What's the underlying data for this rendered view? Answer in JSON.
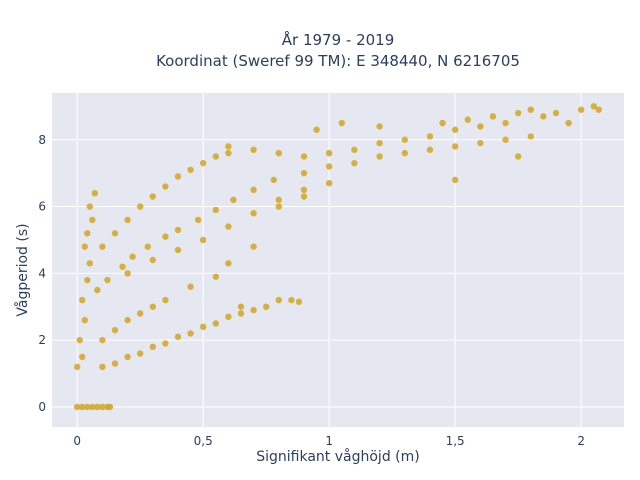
{
  "chart_data": {
    "type": "scatter",
    "title_line1": "År 1979 - 2019",
    "title_line2": "Koordinat (Sweref 99 TM): E 348440, N 6216705",
    "xlabel": "Signifikant våghöjd (m)",
    "ylabel": "Vågperiod (s)",
    "xlim": [
      -0.1,
      2.17
    ],
    "ylim": [
      -0.6,
      9.4
    ],
    "x_ticks": [
      0,
      0.5,
      1,
      1.5,
      2
    ],
    "x_tick_labels": [
      "0",
      "0,5",
      "1",
      "1,5",
      "2"
    ],
    "y_ticks": [
      0,
      2,
      4,
      6,
      8
    ],
    "y_tick_labels": [
      "0",
      "2",
      "4",
      "6",
      "8"
    ],
    "grid": true,
    "legend": "none",
    "colors": {
      "marker": "#d4a520",
      "plot_bg": "#e5e8f0",
      "grid": "#ffffff",
      "text": "#2a3f5f"
    },
    "series": [
      {
        "points": [
          [
            0.0,
            0.0
          ],
          [
            0.02,
            0.0
          ],
          [
            0.04,
            0.0
          ],
          [
            0.06,
            0.0
          ],
          [
            0.08,
            0.0
          ],
          [
            0.1,
            0.0
          ],
          [
            0.12,
            0.0
          ],
          [
            0.13,
            0.0
          ],
          [
            0.0,
            1.2
          ],
          [
            0.02,
            1.5
          ],
          [
            0.01,
            2.0
          ],
          [
            0.03,
            2.6
          ],
          [
            0.02,
            3.2
          ],
          [
            0.04,
            3.8
          ],
          [
            0.05,
            4.3
          ],
          [
            0.03,
            4.8
          ],
          [
            0.04,
            5.2
          ],
          [
            0.06,
            5.6
          ],
          [
            0.05,
            6.0
          ],
          [
            0.07,
            6.4
          ],
          [
            0.1,
            1.2
          ],
          [
            0.15,
            1.3
          ],
          [
            0.2,
            1.5
          ],
          [
            0.25,
            1.6
          ],
          [
            0.3,
            1.8
          ],
          [
            0.35,
            1.9
          ],
          [
            0.4,
            2.1
          ],
          [
            0.45,
            2.2
          ],
          [
            0.5,
            2.4
          ],
          [
            0.55,
            2.5
          ],
          [
            0.6,
            2.7
          ],
          [
            0.65,
            2.8
          ],
          [
            0.7,
            2.9
          ],
          [
            0.75,
            3.0
          ],
          [
            0.8,
            3.2
          ],
          [
            0.1,
            2.0
          ],
          [
            0.15,
            2.3
          ],
          [
            0.2,
            2.6
          ],
          [
            0.25,
            2.8
          ],
          [
            0.3,
            3.0
          ],
          [
            0.35,
            3.2
          ],
          [
            0.08,
            3.5
          ],
          [
            0.12,
            3.8
          ],
          [
            0.18,
            4.2
          ],
          [
            0.22,
            4.5
          ],
          [
            0.28,
            4.8
          ],
          [
            0.35,
            5.1
          ],
          [
            0.4,
            5.3
          ],
          [
            0.48,
            5.6
          ],
          [
            0.55,
            5.9
          ],
          [
            0.62,
            6.2
          ],
          [
            0.7,
            6.5
          ],
          [
            0.78,
            6.8
          ],
          [
            0.1,
            4.8
          ],
          [
            0.15,
            5.2
          ],
          [
            0.2,
            5.6
          ],
          [
            0.25,
            6.0
          ],
          [
            0.3,
            6.3
          ],
          [
            0.35,
            6.6
          ],
          [
            0.4,
            6.9
          ],
          [
            0.45,
            7.1
          ],
          [
            0.5,
            7.3
          ],
          [
            0.55,
            7.5
          ],
          [
            0.6,
            7.6
          ],
          [
            0.2,
            4.0
          ],
          [
            0.3,
            4.4
          ],
          [
            0.4,
            4.7
          ],
          [
            0.5,
            5.0
          ],
          [
            0.6,
            5.4
          ],
          [
            0.7,
            5.8
          ],
          [
            0.8,
            6.2
          ],
          [
            0.9,
            6.5
          ],
          [
            0.6,
            7.8
          ],
          [
            0.7,
            7.7
          ],
          [
            0.8,
            7.6
          ],
          [
            0.9,
            7.5
          ],
          [
            1.0,
            7.6
          ],
          [
            1.1,
            7.7
          ],
          [
            1.2,
            7.9
          ],
          [
            1.3,
            8.0
          ],
          [
            1.4,
            8.1
          ],
          [
            1.5,
            8.3
          ],
          [
            1.6,
            8.4
          ],
          [
            1.7,
            8.5
          ],
          [
            0.9,
            7.0
          ],
          [
            1.0,
            7.2
          ],
          [
            1.1,
            7.3
          ],
          [
            1.2,
            7.5
          ],
          [
            1.3,
            7.6
          ],
          [
            1.4,
            7.7
          ],
          [
            1.5,
            7.8
          ],
          [
            1.6,
            7.9
          ],
          [
            1.7,
            8.0
          ],
          [
            0.95,
            8.3
          ],
          [
            1.05,
            8.5
          ],
          [
            1.2,
            8.4
          ],
          [
            1.45,
            8.5
          ],
          [
            1.55,
            8.6
          ],
          [
            1.65,
            8.7
          ],
          [
            1.75,
            8.8
          ],
          [
            1.8,
            8.9
          ],
          [
            1.85,
            8.7
          ],
          [
            1.9,
            8.8
          ],
          [
            1.95,
            8.5
          ],
          [
            2.0,
            8.9
          ],
          [
            2.05,
            9.0
          ],
          [
            2.07,
            8.9
          ],
          [
            0.8,
            6.0
          ],
          [
            0.9,
            6.3
          ],
          [
            1.0,
            6.7
          ],
          [
            0.7,
            4.8
          ],
          [
            0.6,
            4.3
          ],
          [
            0.55,
            3.9
          ],
          [
            0.45,
            3.6
          ],
          [
            0.65,
            3.0
          ],
          [
            0.85,
            3.2
          ],
          [
            0.88,
            3.15
          ],
          [
            1.5,
            6.8
          ],
          [
            1.75,
            7.5
          ],
          [
            1.8,
            8.1
          ]
        ]
      }
    ]
  }
}
